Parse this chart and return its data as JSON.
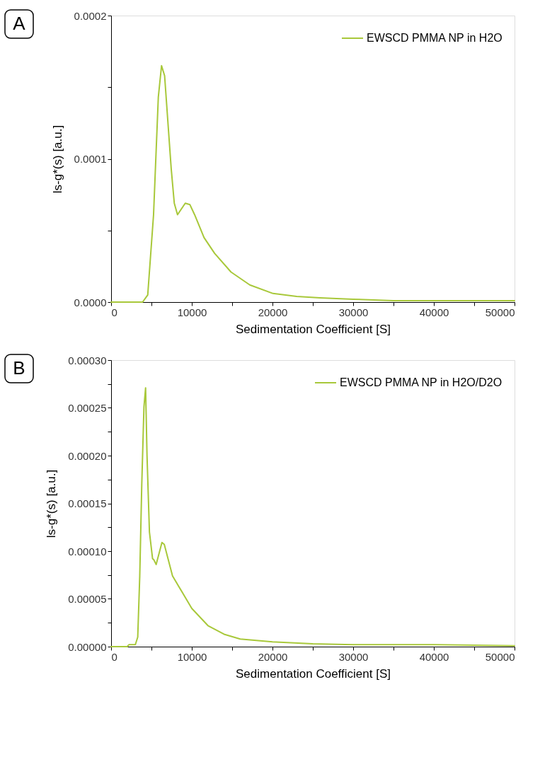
{
  "chart_data": [
    {
      "type": "line",
      "xlabel": "Sedimentation Coefficient [S]",
      "ylabel": "ls-g*(s) [a.u.]",
      "annotations": [
        "A"
      ],
      "x": [
        0,
        3000,
        3900,
        4540,
        5260,
        5850,
        6250,
        6630,
        7450,
        7830,
        8230,
        9190,
        9770,
        10350,
        11520,
        12830,
        14860,
        17190,
        20070,
        23000,
        25900,
        30000,
        35000,
        40000,
        45000,
        50000
      ],
      "series": [
        {
          "name": "EWSCD PMMA NP in H2O",
          "color": "#a8c83a",
          "values": [
            0,
            0,
            0,
            5e-06,
            6.1e-05,
            0.000143,
            0.000165,
            0.000158,
            9.3e-05,
            6.9e-05,
            6.1e-05,
            6.9e-05,
            6.8e-05,
            6.1e-05,
            4.5e-05,
            3.4e-05,
            2.1e-05,
            1.2e-05,
            6e-06,
            4e-06,
            3e-06,
            2e-06,
            1e-06,
            1e-06,
            1e-06,
            1e-06
          ]
        }
      ],
      "xlim": [
        0,
        50000
      ],
      "ylim": [
        0,
        0.0002
      ],
      "xticks": [
        0,
        {
          "value": 5000,
          "label": null
        },
        10000,
        {
          "value": 15000,
          "label": null
        },
        20000,
        {
          "value": 25000,
          "label": null
        },
        30000,
        {
          "value": 35000,
          "label": null
        },
        40000,
        {
          "value": 45000,
          "label": null
        },
        50000
      ],
      "yticks": [
        {
          "value": 0,
          "label": "0.0000"
        },
        {
          "value": 5e-05,
          "label": null
        },
        {
          "value": 0.0001,
          "label": "0.0001"
        },
        {
          "value": 0.00015,
          "label": null
        },
        {
          "value": 0.0002,
          "label": "0.0002"
        }
      ],
      "legend": "top right",
      "grid": false,
      "marker": "none",
      "line_style": "solid"
    },
    {
      "type": "line",
      "xlabel": "Sedimentation Coefficient [S]",
      "ylabel": "ls-g*(s) [a.u.]",
      "annotations": [
        "B"
      ],
      "x": [
        0,
        2000,
        2200,
        3000,
        3300,
        3550,
        3800,
        4070,
        4275,
        4450,
        4750,
        5140,
        5290,
        5580,
        6300,
        6590,
        7610,
        9300,
        10000,
        12000,
        14000,
        16000,
        20000,
        25000,
        30000,
        40000,
        50000
      ],
      "series": [
        {
          "name": "EWSCD PMMA NP in H2O/D2O",
          "color": "#a8c83a",
          "values": [
            0,
            0,
            2e-06,
            2e-06,
            1e-05,
            7.4e-05,
            0.00017,
            0.000251,
            0.000271,
            0.0002,
            0.00012,
            9.2e-05,
            9.1e-05,
            8.6e-05,
            0.000109,
            0.000107,
            7.4e-05,
            5e-05,
            4e-05,
            2.2e-05,
            1.3e-05,
            8e-06,
            5e-06,
            3e-06,
            2e-06,
            2e-06,
            1e-06
          ]
        }
      ],
      "xlim": [
        0,
        50000
      ],
      "ylim": [
        0,
        0.0003
      ],
      "xticks": [
        0,
        {
          "value": 5000,
          "label": null
        },
        10000,
        {
          "value": 15000,
          "label": null
        },
        20000,
        {
          "value": 25000,
          "label": null
        },
        30000,
        {
          "value": 35000,
          "label": null
        },
        40000,
        {
          "value": 45000,
          "label": null
        },
        50000
      ],
      "yticks": [
        {
          "value": 0,
          "label": "0.00000"
        },
        {
          "value": 2.5e-05,
          "label": null
        },
        {
          "value": 5e-05,
          "label": "0.00005"
        },
        {
          "value": 7.5e-05,
          "label": null
        },
        {
          "value": 0.0001,
          "label": "0.00010"
        },
        {
          "value": 0.000125,
          "label": null
        },
        {
          "value": 0.00015,
          "label": "0.00015"
        },
        {
          "value": 0.000175,
          "label": null
        },
        {
          "value": 0.0002,
          "label": "0.00020"
        },
        {
          "value": 0.000225,
          "label": null
        },
        {
          "value": 0.00025,
          "label": "0.00025"
        },
        {
          "value": 0.000275,
          "label": null
        },
        {
          "value": 0.0003,
          "label": "0.00030"
        }
      ],
      "legend": "top right",
      "grid": false,
      "marker": "none",
      "line_style": "solid"
    }
  ]
}
